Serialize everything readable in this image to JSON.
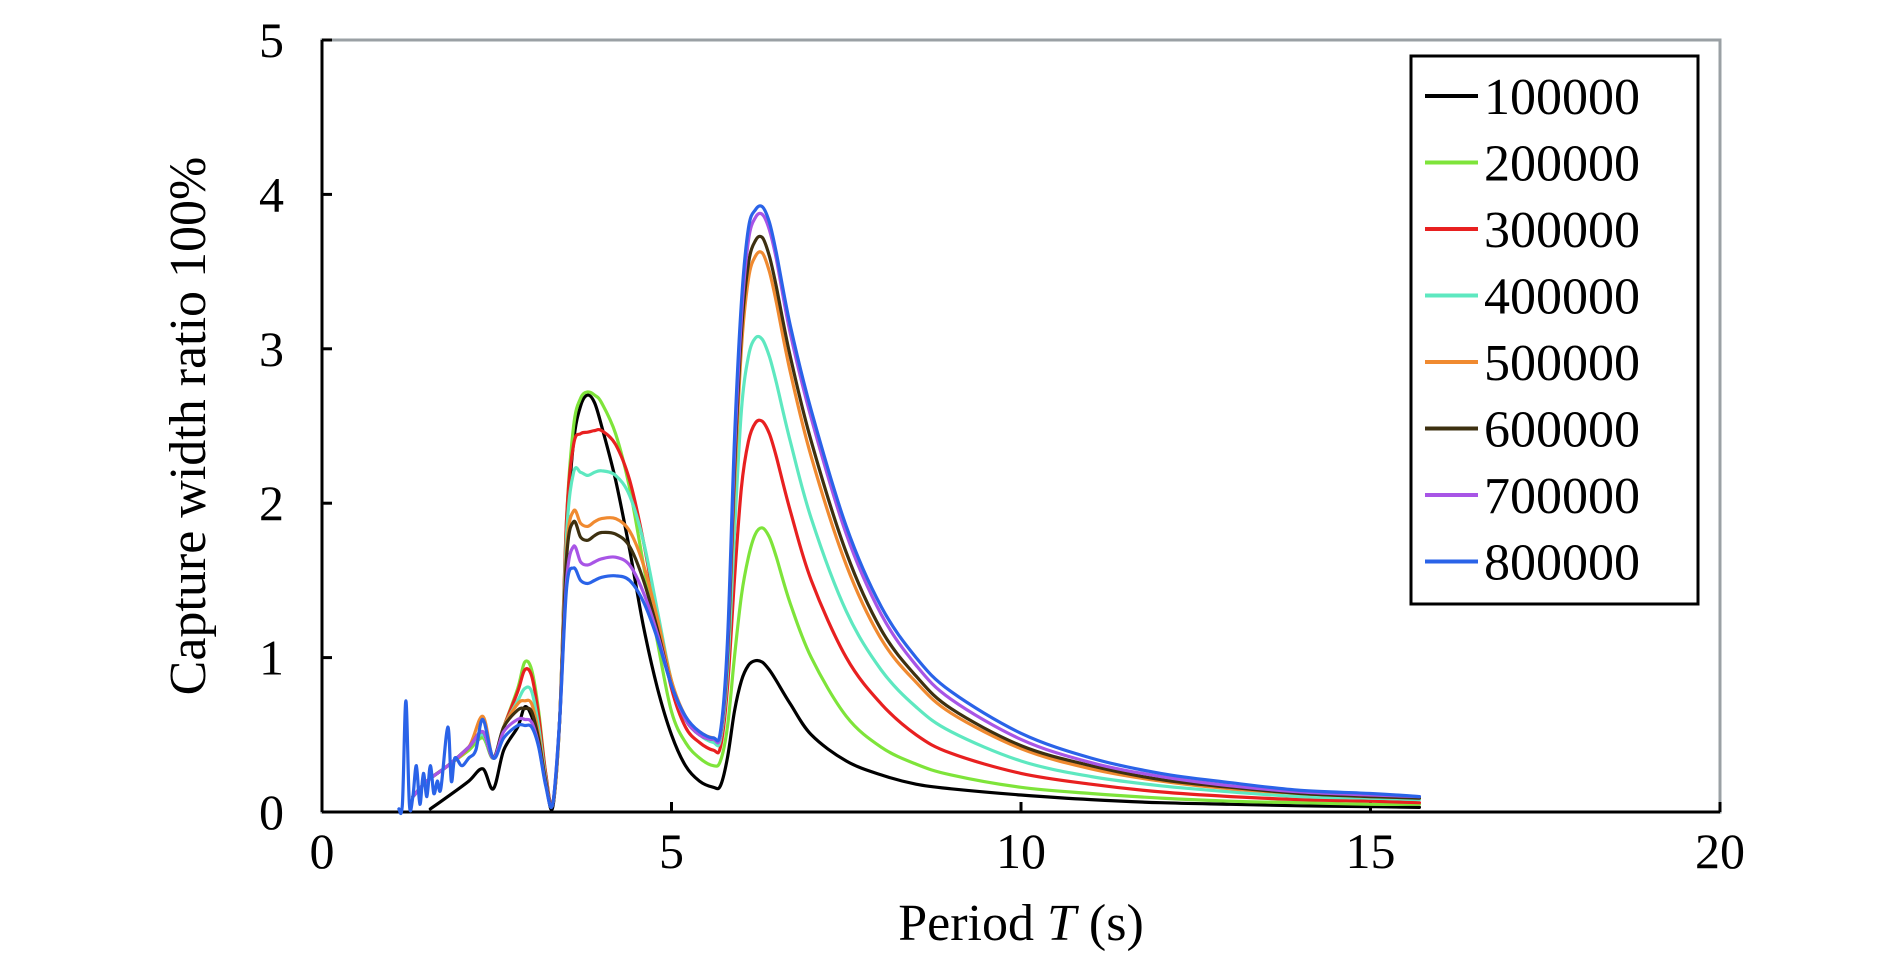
{
  "chart_data": {
    "type": "line",
    "title": "",
    "xlabel": {
      "prefix": "Period ",
      "italic": "T",
      "suffix": " (s)"
    },
    "ylabel": "Capture width ratio 100%",
    "xlim": [
      0,
      20
    ],
    "ylim": [
      0,
      5
    ],
    "xticks": [
      "0",
      "5",
      "10",
      "15",
      "20"
    ],
    "yticks": [
      "0",
      "1",
      "2",
      "3",
      "4",
      "5"
    ],
    "grid": false,
    "legend_position": "top-right",
    "series": [
      {
        "name": "100000",
        "color": "#000000",
        "x": [
          1.55,
          1.8,
          2.1,
          2.3,
          2.45,
          2.6,
          2.8,
          2.9,
          3.0,
          3.1,
          3.2,
          3.3,
          3.4,
          3.5,
          3.6,
          3.7,
          3.8,
          3.9,
          4.0,
          4.2,
          4.4,
          4.6,
          4.8,
          5.0,
          5.2,
          5.4,
          5.6,
          5.7,
          5.8,
          5.9,
          6.0,
          6.1,
          6.2,
          6.3,
          6.4,
          6.5,
          6.7,
          7.0,
          7.5,
          8.0,
          8.5,
          9.0,
          10.0,
          11.0,
          12.0,
          13.0,
          14.0,
          15.0,
          15.7
        ],
        "y": [
          0.02,
          0.1,
          0.2,
          0.28,
          0.15,
          0.4,
          0.55,
          0.68,
          0.62,
          0.45,
          0.2,
          0.03,
          0.6,
          1.8,
          2.4,
          2.63,
          2.7,
          2.65,
          2.5,
          2.15,
          1.7,
          1.2,
          0.8,
          0.5,
          0.3,
          0.2,
          0.16,
          0.17,
          0.35,
          0.65,
          0.85,
          0.95,
          0.98,
          0.97,
          0.92,
          0.85,
          0.7,
          0.5,
          0.33,
          0.24,
          0.18,
          0.15,
          0.11,
          0.08,
          0.06,
          0.05,
          0.04,
          0.035,
          0.03
        ]
      },
      {
        "name": "200000",
        "color": "#7ee43a",
        "x": [
          1.3,
          1.5,
          1.8,
          2.1,
          2.3,
          2.45,
          2.6,
          2.8,
          2.9,
          3.0,
          3.1,
          3.2,
          3.3,
          3.4,
          3.5,
          3.6,
          3.7,
          3.8,
          3.9,
          4.0,
          4.2,
          4.4,
          4.6,
          4.8,
          5.0,
          5.2,
          5.4,
          5.6,
          5.7,
          5.8,
          5.9,
          6.0,
          6.1,
          6.2,
          6.3,
          6.4,
          6.5,
          6.7,
          7.0,
          7.5,
          8.0,
          8.5,
          9.0,
          10.0,
          11.0,
          12.0,
          13.0,
          14.0,
          15.0,
          15.7
        ],
        "y": [
          0.1,
          0.2,
          0.3,
          0.4,
          0.48,
          0.35,
          0.55,
          0.8,
          0.97,
          0.92,
          0.65,
          0.25,
          0.05,
          0.6,
          1.9,
          2.5,
          2.68,
          2.72,
          2.7,
          2.65,
          2.45,
          2.1,
          1.6,
          1.1,
          0.65,
          0.45,
          0.35,
          0.3,
          0.33,
          0.55,
          1.0,
          1.4,
          1.65,
          1.8,
          1.84,
          1.78,
          1.65,
          1.35,
          1.0,
          0.62,
          0.42,
          0.31,
          0.24,
          0.16,
          0.12,
          0.09,
          0.07,
          0.06,
          0.05,
          0.05
        ]
      },
      {
        "name": "300000",
        "color": "#e82020",
        "x": [
          1.3,
          1.5,
          1.8,
          2.1,
          2.3,
          2.45,
          2.6,
          2.8,
          2.9,
          3.0,
          3.1,
          3.2,
          3.3,
          3.4,
          3.5,
          3.6,
          3.7,
          3.8,
          3.9,
          4.0,
          4.2,
          4.4,
          4.6,
          4.8,
          5.0,
          5.2,
          5.4,
          5.6,
          5.7,
          5.8,
          5.9,
          6.0,
          6.1,
          6.2,
          6.3,
          6.4,
          6.5,
          6.7,
          7.0,
          7.5,
          8.0,
          8.5,
          9.0,
          10.0,
          11.0,
          12.0,
          13.0,
          14.0,
          15.0,
          15.7
        ],
        "y": [
          0.1,
          0.2,
          0.3,
          0.42,
          0.5,
          0.35,
          0.55,
          0.78,
          0.92,
          0.88,
          0.62,
          0.25,
          0.05,
          0.6,
          1.9,
          2.38,
          2.45,
          2.46,
          2.47,
          2.47,
          2.38,
          2.15,
          1.75,
          1.25,
          0.8,
          0.55,
          0.45,
          0.4,
          0.42,
          0.8,
          1.5,
          2.1,
          2.4,
          2.52,
          2.53,
          2.45,
          2.3,
          1.95,
          1.5,
          1.0,
          0.7,
          0.5,
          0.38,
          0.25,
          0.18,
          0.13,
          0.1,
          0.08,
          0.07,
          0.06
        ]
      },
      {
        "name": "400000",
        "color": "#5ee8c0",
        "x": [
          1.3,
          1.5,
          1.8,
          2.1,
          2.3,
          2.45,
          2.6,
          2.8,
          2.9,
          3.0,
          3.1,
          3.2,
          3.3,
          3.4,
          3.5,
          3.6,
          3.7,
          3.8,
          3.9,
          4.0,
          4.2,
          4.4,
          4.6,
          4.8,
          5.0,
          5.2,
          5.4,
          5.6,
          5.7,
          5.8,
          5.9,
          6.0,
          6.1,
          6.2,
          6.3,
          6.4,
          6.5,
          6.7,
          7.0,
          7.5,
          8.0,
          8.5,
          9.0,
          10.0,
          11.0,
          12.0,
          13.0,
          14.0,
          15.0,
          15.7
        ],
        "y": [
          0.1,
          0.2,
          0.3,
          0.42,
          0.5,
          0.35,
          0.55,
          0.72,
          0.8,
          0.78,
          0.55,
          0.22,
          0.05,
          0.6,
          1.8,
          2.2,
          2.2,
          2.18,
          2.2,
          2.21,
          2.18,
          2.05,
          1.75,
          1.3,
          0.85,
          0.6,
          0.5,
          0.45,
          0.47,
          0.9,
          1.8,
          2.6,
          2.95,
          3.07,
          3.06,
          2.95,
          2.78,
          2.4,
          1.9,
          1.3,
          0.92,
          0.68,
          0.52,
          0.33,
          0.23,
          0.17,
          0.13,
          0.1,
          0.09,
          0.08
        ]
      },
      {
        "name": "500000",
        "color": "#f08a30",
        "x": [
          1.3,
          1.5,
          1.8,
          2.1,
          2.3,
          2.45,
          2.6,
          2.8,
          2.9,
          3.0,
          3.1,
          3.2,
          3.3,
          3.4,
          3.5,
          3.6,
          3.7,
          3.8,
          3.9,
          4.0,
          4.2,
          4.4,
          4.6,
          4.8,
          5.0,
          5.2,
          5.4,
          5.6,
          5.7,
          5.8,
          5.9,
          6.0,
          6.1,
          6.2,
          6.3,
          6.4,
          6.5,
          6.7,
          7.0,
          7.5,
          8.0,
          8.5,
          9.0,
          10.0,
          11.0,
          12.0,
          13.0,
          14.0,
          15.0,
          15.7
        ],
        "y": [
          0.1,
          0.2,
          0.3,
          0.42,
          0.62,
          0.35,
          0.55,
          0.7,
          0.72,
          0.7,
          0.5,
          0.2,
          0.05,
          0.6,
          1.7,
          1.95,
          1.87,
          1.85,
          1.88,
          1.9,
          1.9,
          1.82,
          1.6,
          1.25,
          0.85,
          0.62,
          0.52,
          0.48,
          0.5,
          1.0,
          2.1,
          3.0,
          3.45,
          3.6,
          3.62,
          3.5,
          3.3,
          2.85,
          2.3,
          1.6,
          1.12,
          0.84,
          0.64,
          0.41,
          0.28,
          0.2,
          0.15,
          0.12,
          0.1,
          0.09
        ]
      },
      {
        "name": "600000",
        "color": "#3d3010",
        "x": [
          1.3,
          1.5,
          1.8,
          2.1,
          2.3,
          2.45,
          2.6,
          2.8,
          2.9,
          3.0,
          3.1,
          3.2,
          3.3,
          3.4,
          3.5,
          3.6,
          3.7,
          3.8,
          3.9,
          4.0,
          4.2,
          4.4,
          4.6,
          4.8,
          5.0,
          5.2,
          5.4,
          5.6,
          5.7,
          5.8,
          5.9,
          6.0,
          6.1,
          6.2,
          6.3,
          6.4,
          6.5,
          6.7,
          7.0,
          7.5,
          8.0,
          8.5,
          9.0,
          10.0,
          11.0,
          12.0,
          13.0,
          14.0,
          15.0,
          15.7
        ],
        "y": [
          0.1,
          0.2,
          0.3,
          0.42,
          0.52,
          0.35,
          0.55,
          0.66,
          0.67,
          0.65,
          0.47,
          0.2,
          0.05,
          0.6,
          1.65,
          1.88,
          1.78,
          1.76,
          1.79,
          1.81,
          1.8,
          1.72,
          1.5,
          1.18,
          0.82,
          0.6,
          0.5,
          0.47,
          0.5,
          1.0,
          2.2,
          3.1,
          3.55,
          3.7,
          3.72,
          3.6,
          3.4,
          2.95,
          2.4,
          1.68,
          1.18,
          0.88,
          0.67,
          0.43,
          0.3,
          0.21,
          0.16,
          0.12,
          0.1,
          0.09
        ]
      },
      {
        "name": "700000",
        "color": "#a855e6",
        "x": [
          1.3,
          1.5,
          1.8,
          2.1,
          2.3,
          2.45,
          2.6,
          2.8,
          2.9,
          3.0,
          3.1,
          3.2,
          3.3,
          3.4,
          3.5,
          3.6,
          3.7,
          3.8,
          3.9,
          4.0,
          4.2,
          4.4,
          4.6,
          4.8,
          5.0,
          5.2,
          5.4,
          5.6,
          5.7,
          5.8,
          5.9,
          6.0,
          6.1,
          6.2,
          6.3,
          6.4,
          6.5,
          6.7,
          7.0,
          7.5,
          8.0,
          8.5,
          9.0,
          10.0,
          11.0,
          12.0,
          13.0,
          14.0,
          15.0,
          15.7
        ],
        "y": [
          0.1,
          0.2,
          0.3,
          0.42,
          0.52,
          0.35,
          0.52,
          0.6,
          0.6,
          0.58,
          0.43,
          0.18,
          0.05,
          0.6,
          1.5,
          1.72,
          1.62,
          1.6,
          1.62,
          1.64,
          1.65,
          1.6,
          1.42,
          1.15,
          0.82,
          0.6,
          0.5,
          0.47,
          0.5,
          1.05,
          2.3,
          3.2,
          3.7,
          3.85,
          3.87,
          3.77,
          3.58,
          3.1,
          2.55,
          1.8,
          1.28,
          0.95,
          0.73,
          0.47,
          0.32,
          0.23,
          0.17,
          0.13,
          0.11,
          0.1
        ]
      },
      {
        "name": "800000",
        "color": "#2a63e8",
        "x": [
          1.1,
          1.15,
          1.2,
          1.25,
          1.3,
          1.35,
          1.4,
          1.45,
          1.5,
          1.55,
          1.6,
          1.65,
          1.7,
          1.8,
          1.85,
          1.9,
          2.0,
          2.1,
          2.2,
          2.3,
          2.45,
          2.6,
          2.8,
          2.9,
          3.0,
          3.1,
          3.2,
          3.3,
          3.4,
          3.5,
          3.6,
          3.7,
          3.8,
          3.9,
          4.0,
          4.2,
          4.4,
          4.6,
          4.8,
          5.0,
          5.2,
          5.4,
          5.6,
          5.7,
          5.8,
          5.9,
          6.0,
          6.1,
          6.2,
          6.3,
          6.4,
          6.5,
          6.7,
          7.0,
          7.5,
          8.0,
          8.5,
          9.0,
          10.0,
          11.0,
          12.0,
          13.0,
          14.0,
          15.0,
          15.7
        ],
        "y": [
          0.02,
          0.05,
          0.72,
          0.05,
          0.1,
          0.3,
          0.05,
          0.25,
          0.1,
          0.3,
          0.12,
          0.2,
          0.15,
          0.55,
          0.2,
          0.35,
          0.3,
          0.35,
          0.4,
          0.6,
          0.35,
          0.48,
          0.56,
          0.56,
          0.55,
          0.42,
          0.17,
          0.05,
          0.6,
          1.45,
          1.58,
          1.5,
          1.48,
          1.5,
          1.52,
          1.53,
          1.5,
          1.36,
          1.12,
          0.82,
          0.62,
          0.52,
          0.48,
          0.52,
          1.1,
          2.4,
          3.3,
          3.78,
          3.9,
          3.92,
          3.82,
          3.62,
          3.15,
          2.6,
          1.85,
          1.33,
          1.0,
          0.78,
          0.51,
          0.35,
          0.25,
          0.19,
          0.14,
          0.12,
          0.1
        ]
      }
    ]
  }
}
